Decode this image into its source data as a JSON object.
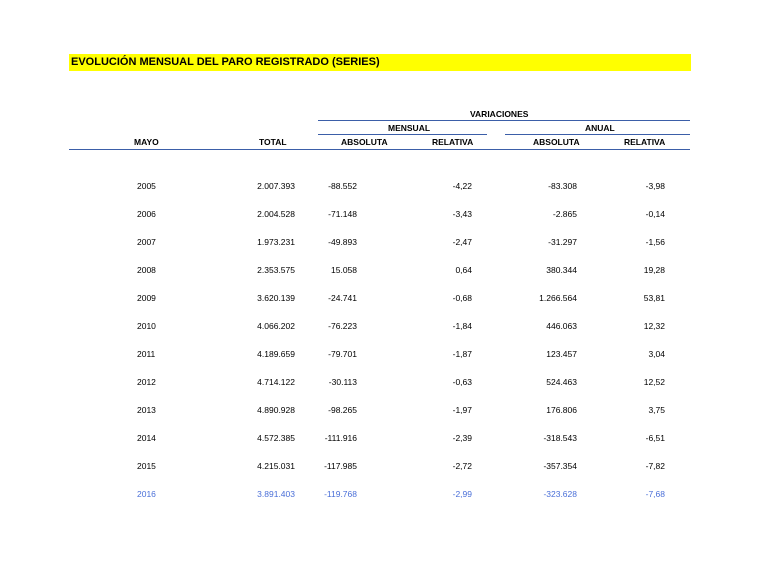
{
  "title": "EVOLUCIÓN MENSUAL DEL PARO REGISTRADO (SERIES)",
  "headers": {
    "variaciones": "VARIACIONES",
    "mensual": "MENSUAL",
    "anual": "ANUAL",
    "mayo": "MAYO",
    "total": "TOTAL",
    "mensual_absoluta": "ABSOLUTA",
    "mensual_relativa": "RELATIVA",
    "anual_absoluta": "ABSOLUTA",
    "anual_relativa": "RELATIVA"
  },
  "colors": {
    "title_bg": "#ffff00",
    "rule": "#3b5ea8",
    "highlight_row": "#4a6fd8"
  },
  "rows": [
    [
      "2005",
      "2.007.393",
      "-88.552",
      "-4,22",
      "-83.308",
      "-3,98"
    ],
    [
      "2006",
      "2.004.528",
      "-71.148",
      "-3,43",
      "-2.865",
      "-0,14"
    ],
    [
      "2007",
      "1.973.231",
      "-49.893",
      "-2,47",
      "-31.297",
      "-1,56"
    ],
    [
      "2008",
      "2.353.575",
      "15.058",
      "0,64",
      "380.344",
      "19,28"
    ],
    [
      "2009",
      "3.620.139",
      "-24.741",
      "-0,68",
      "1.266.564",
      "53,81"
    ],
    [
      "2010",
      "4.066.202",
      "-76.223",
      "-1,84",
      "446.063",
      "12,32"
    ],
    [
      "2011",
      "4.189.659",
      "-79.701",
      "-1,87",
      "123.457",
      "3,04"
    ],
    [
      "2012",
      "4.714.122",
      "-30.113",
      "-0,63",
      "524.463",
      "12,52"
    ],
    [
      "2013",
      "4.890.928",
      "-98.265",
      "-1,97",
      "176.806",
      "3,75"
    ],
    [
      "2014",
      "4.572.385",
      "-111.916",
      "-2,39",
      "-318.543",
      "-6,51"
    ],
    [
      "2015",
      "4.215.031",
      "-117.985",
      "-2,72",
      "-357.354",
      "-7,82"
    ],
    [
      "2016",
      "3.891.403",
      "-119.768",
      "-2,99",
      "-323.628",
      "-7,68"
    ]
  ]
}
